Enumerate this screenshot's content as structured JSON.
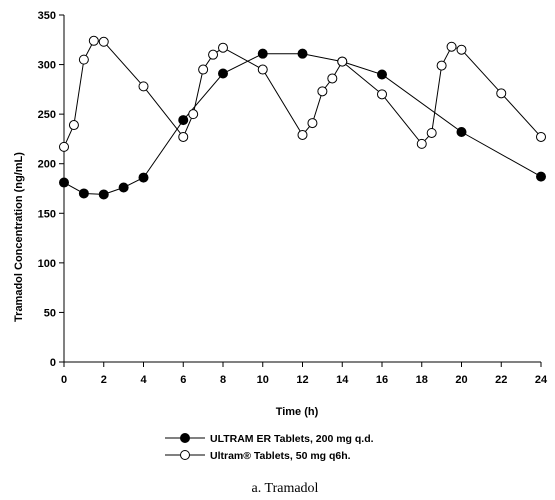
{
  "chart_data": {
    "type": "line",
    "xlabel": "Time (h)",
    "ylabel": "Tramadol Concentration (ng/mL)",
    "caption": "a. Tramadol",
    "xlim": [
      0,
      24
    ],
    "ylim": [
      0,
      350
    ],
    "xticks": [
      0,
      2,
      4,
      6,
      8,
      10,
      12,
      14,
      16,
      18,
      20,
      22,
      24
    ],
    "yticks": [
      0,
      50,
      100,
      150,
      200,
      250,
      300,
      350
    ],
    "grid": false,
    "legend_position": "bottom-left",
    "series": [
      {
        "name": "ULTRAM ER Tablets, 200 mg q.d.",
        "marker": "filled-circle",
        "color": "#000000",
        "points": [
          [
            0,
            181
          ],
          [
            1,
            170
          ],
          [
            2,
            169
          ],
          [
            3,
            176
          ],
          [
            4,
            186
          ],
          [
            6,
            244
          ],
          [
            8,
            291
          ],
          [
            10,
            311
          ],
          [
            12,
            311
          ],
          [
            14,
            303
          ],
          [
            16,
            290
          ],
          [
            20,
            232
          ],
          [
            24,
            187
          ]
        ]
      },
      {
        "name": "Ultram® Tablets, 50 mg q6h.",
        "marker": "open-circle",
        "color": "#000000",
        "points": [
          [
            0,
            217
          ],
          [
            0.5,
            239
          ],
          [
            1,
            305
          ],
          [
            1.5,
            324
          ],
          [
            2,
            323
          ],
          [
            4,
            278
          ],
          [
            6,
            227
          ],
          [
            6.5,
            250
          ],
          [
            7,
            295
          ],
          [
            7.5,
            310
          ],
          [
            8,
            317
          ],
          [
            10,
            295
          ],
          [
            12,
            229
          ],
          [
            12.5,
            241
          ],
          [
            13,
            273
          ],
          [
            13.5,
            286
          ],
          [
            14,
            303
          ],
          [
            16,
            270
          ],
          [
            18,
            220
          ],
          [
            18.5,
            231
          ],
          [
            19,
            299
          ],
          [
            19.5,
            318
          ],
          [
            20,
            315
          ],
          [
            22,
            271
          ],
          [
            24,
            227
          ]
        ]
      }
    ]
  }
}
